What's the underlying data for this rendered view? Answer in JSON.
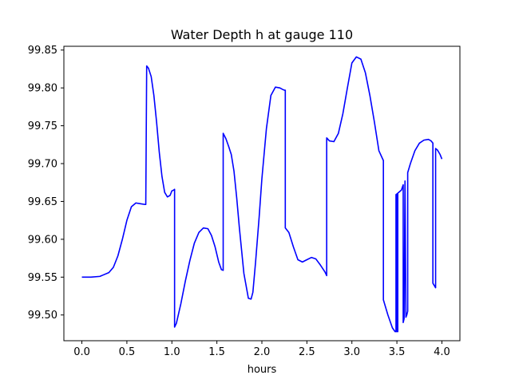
{
  "chart_data": {
    "type": "line",
    "title": "Water Depth h at gauge 110",
    "xlabel": "hours",
    "ylabel": "",
    "xlim": [
      -0.2,
      4.2
    ],
    "ylim": [
      99.466,
      99.855
    ],
    "grid": false,
    "x_ticks": [
      0.0,
      0.5,
      1.0,
      1.5,
      2.0,
      2.5,
      3.0,
      3.5,
      4.0
    ],
    "x_tick_labels": [
      "0.0",
      "0.5",
      "1.0",
      "1.5",
      "2.0",
      "2.5",
      "3.0",
      "3.5",
      "4.0"
    ],
    "y_ticks": [
      99.5,
      99.55,
      99.6,
      99.65,
      99.7,
      99.75,
      99.8,
      99.85
    ],
    "y_tick_labels": [
      "99.50",
      "99.55",
      "99.60",
      "99.65",
      "99.70",
      "99.75",
      "99.80",
      "99.85"
    ],
    "series": [
      {
        "color": "#0000ff",
        "x": [
          0.0,
          0.1,
          0.2,
          0.3,
          0.35,
          0.4,
          0.45,
          0.5,
          0.55,
          0.6,
          0.65,
          0.7,
          0.71,
          0.72,
          0.74,
          0.77,
          0.8,
          0.83,
          0.86,
          0.89,
          0.92,
          0.95,
          0.98,
          1.0,
          1.02,
          1.03,
          1.03,
          1.05,
          1.1,
          1.15,
          1.2,
          1.25,
          1.3,
          1.35,
          1.4,
          1.44,
          1.48,
          1.52,
          1.55,
          1.57,
          1.57,
          1.6,
          1.63,
          1.66,
          1.69,
          1.72,
          1.75,
          1.8,
          1.85,
          1.88,
          1.9,
          1.93,
          1.97,
          2.0,
          2.05,
          2.1,
          2.15,
          2.2,
          2.23,
          2.25,
          2.26,
          2.26,
          2.3,
          2.35,
          2.4,
          2.45,
          2.5,
          2.55,
          2.6,
          2.65,
          2.7,
          2.72,
          2.72,
          2.75,
          2.8,
          2.85,
          2.9,
          2.95,
          3.0,
          3.05,
          3.1,
          3.15,
          3.2,
          3.25,
          3.3,
          3.35,
          3.35,
          3.4,
          3.45,
          3.48,
          3.49,
          3.49,
          3.5,
          3.5,
          3.51,
          3.51,
          3.52,
          3.55,
          3.57,
          3.57,
          3.58,
          3.59,
          3.6,
          3.61,
          3.62,
          3.62,
          3.65,
          3.7,
          3.75,
          3.8,
          3.85,
          3.88,
          3.9,
          3.9,
          3.93,
          3.93,
          3.95,
          3.98,
          4.0
        ],
        "y": [
          99.55,
          99.55,
          99.551,
          99.556,
          99.563,
          99.578,
          99.6,
          99.625,
          99.643,
          99.648,
          99.647,
          99.646,
          99.646,
          99.829,
          99.826,
          99.815,
          99.79,
          99.755,
          99.715,
          99.683,
          99.662,
          99.656,
          99.658,
          99.664,
          99.665,
          99.666,
          99.484,
          99.489,
          99.515,
          99.545,
          99.572,
          99.595,
          99.609,
          99.615,
          99.614,
          99.605,
          99.59,
          99.57,
          99.56,
          99.559,
          99.74,
          99.733,
          99.723,
          99.712,
          99.69,
          99.655,
          99.615,
          99.555,
          99.522,
          99.521,
          99.53,
          99.57,
          99.63,
          99.68,
          99.746,
          99.79,
          99.801,
          99.8,
          99.798,
          99.797,
          99.797,
          99.615,
          99.609,
          99.59,
          99.573,
          99.57,
          99.573,
          99.576,
          99.574,
          99.566,
          99.557,
          99.552,
          99.734,
          99.73,
          99.729,
          99.74,
          99.766,
          99.8,
          99.833,
          99.841,
          99.838,
          99.82,
          99.79,
          99.755,
          99.717,
          99.704,
          99.52,
          99.5,
          99.483,
          99.478,
          99.478,
          99.659,
          99.66,
          99.478,
          99.478,
          99.661,
          99.662,
          99.665,
          99.672,
          99.49,
          99.495,
          99.677,
          99.497,
          99.5,
          99.505,
          99.688,
          99.7,
          99.717,
          99.727,
          99.731,
          99.732,
          99.73,
          99.727,
          99.542,
          99.536,
          99.72,
          99.718,
          99.712,
          99.706
        ]
      }
    ]
  }
}
